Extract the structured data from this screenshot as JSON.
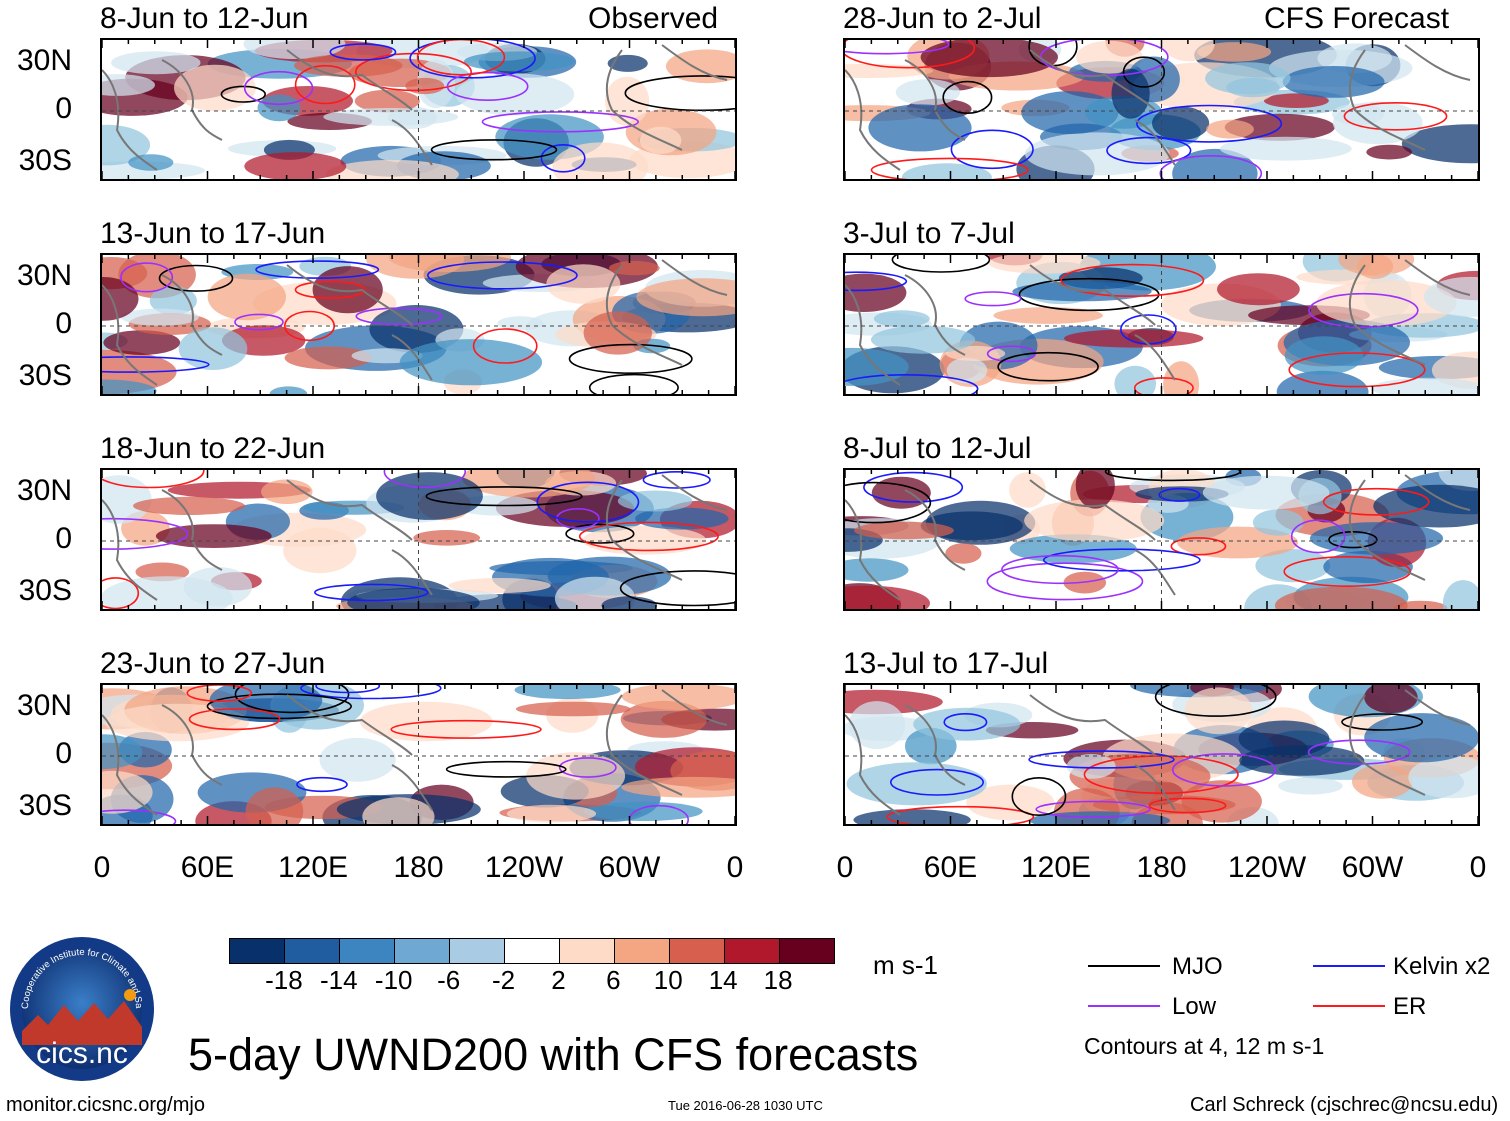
{
  "chart_data": {
    "type": "heatmap",
    "title": "5-day UWND200 with CFS forecasts",
    "variable": "UWND200",
    "units": "m s-1",
    "x_tick_labels": [
      "0",
      "60E",
      "120E",
      "180",
      "120W",
      "60W",
      "0"
    ],
    "y_tick_labels": [
      "30N",
      "0",
      "30S"
    ],
    "x_range_deg_east": [
      0,
      360
    ],
    "y_range_deg": [
      -40,
      40
    ],
    "colorbar": {
      "levels": [
        -18,
        -14,
        -10,
        -6,
        -2,
        2,
        6,
        10,
        14,
        18
      ],
      "tick_labels": [
        "-18",
        "-14",
        "-10",
        "-6",
        "-2",
        "2",
        "6",
        "10",
        "14",
        "18"
      ],
      "colors": [
        "#08306b",
        "#1f5da0",
        "#3d85c0",
        "#6fa8d3",
        "#a9cbe4",
        "#d9e8f3",
        "#ffffff",
        "#fddbc7",
        "#f4a582",
        "#d6604d",
        "#b2182b",
        "#67001f"
      ]
    },
    "columns": [
      {
        "label": "Observed",
        "panels": [
          "8-Jun to 12-Jun",
          "13-Jun to 17-Jun",
          "18-Jun to 22-Jun",
          "23-Jun to 27-Jun"
        ]
      },
      {
        "label": "CFS Forecast",
        "panels": [
          "28-Jun to 2-Jul",
          "3-Jul to 7-Jul",
          "8-Jul to 12-Jul",
          "13-Jul to 17-Jul"
        ]
      }
    ],
    "contour_legend": [
      {
        "name": "MJO",
        "color": "#000000"
      },
      {
        "name": "Kelvin x2",
        "color": "#1a1aff"
      },
      {
        "name": "Low",
        "color": "#9b30ff"
      },
      {
        "name": "ER",
        "color": "#ff1a1a"
      }
    ],
    "contour_note": "Contours at 4, 12 m s-1"
  },
  "footer": {
    "left": "monitor.cicsnc.org/mjo",
    "center": "Tue 2016-06-28 1030 UTC",
    "right": "Carl Schreck (cjschrec@ncsu.edu)"
  },
  "logo": {
    "wordmark": "cics.nc",
    "ring_text": "Cooperative Institute for Climate and Satellites"
  }
}
